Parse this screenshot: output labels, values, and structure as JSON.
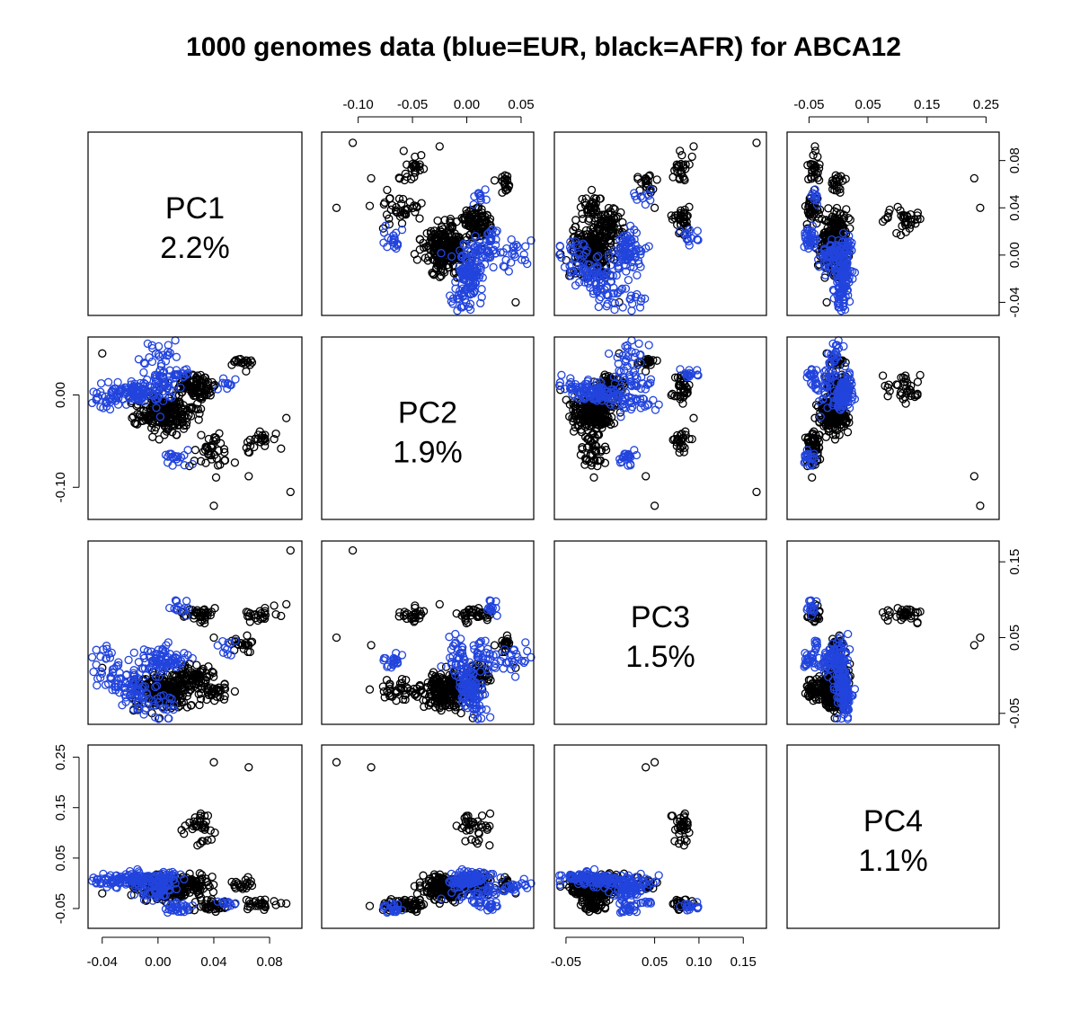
{
  "chart_data": {
    "type": "scatter",
    "title": "1000 genomes data (blue=EUR, black=AFR) for ABCA12",
    "colors": {
      "EUR": "#2244dd",
      "AFR": "#000000"
    },
    "variables": [
      {
        "name": "PC1",
        "pct": "2.2%",
        "range": [
          -0.045,
          0.098
        ],
        "ticks": [
          -0.04,
          0.0,
          0.04,
          0.08
        ],
        "tick_labels": [
          "-0.04",
          "0.00",
          "0.04",
          "0.08"
        ]
      },
      {
        "name": "PC2",
        "pct": "1.9%",
        "range": [
          -0.127,
          0.055
        ],
        "ticks": [
          -0.1,
          -0.05,
          0.0,
          0.05
        ],
        "tick_labels": [
          "-0.10",
          "-0.05",
          "0.00",
          "0.05"
        ]
      },
      {
        "name": "PC3",
        "pct": "1.5%",
        "range": [
          -0.055,
          0.168
        ],
        "ticks": [
          -0.05,
          0.05,
          0.1,
          0.15
        ],
        "tick_labels": [
          "-0.05",
          "0.05",
          "0.10",
          "0.15"
        ]
      },
      {
        "name": "PC4",
        "pct": "1.1%",
        "range": [
          -0.075,
          0.26
        ],
        "ticks": [
          -0.05,
          0.05,
          0.15,
          0.25
        ],
        "tick_labels": [
          "-0.05",
          "0.05",
          "0.15",
          "0.25"
        ]
      }
    ],
    "axes": {
      "top": [
        {
          "col": 1,
          "ticks": [
            -0.1,
            -0.05,
            0.0,
            0.05
          ],
          "tick_labels": [
            "-0.10",
            "-0.05",
            "0.00",
            "0.05"
          ]
        },
        {
          "col": 3,
          "ticks": [
            -0.05,
            0.05,
            0.15,
            0.25
          ],
          "tick_labels": [
            "-0.05",
            "0.05",
            "0.15",
            "0.25"
          ]
        }
      ],
      "bottom": [
        {
          "col": 0,
          "ticks": [
            -0.04,
            0.0,
            0.04,
            0.08
          ],
          "tick_labels": [
            "-0.04",
            "0.00",
            "0.04",
            "0.08"
          ]
        },
        {
          "col": 2,
          "ticks": [
            -0.05,
            0.05,
            0.1,
            0.15
          ],
          "tick_labels": [
            "-0.05",
            "0.05",
            "0.10",
            "0.15"
          ]
        }
      ],
      "left": [
        {
          "row": 1,
          "ticks": [
            -0.1,
            0.0
          ],
          "tick_labels": [
            "-0.10",
            "0.00"
          ]
        },
        {
          "row": 3,
          "ticks": [
            -0.05,
            0.05,
            0.15,
            0.25
          ],
          "tick_labels": [
            "-0.05",
            "0.05",
            "0.15",
            "0.25"
          ]
        }
      ],
      "right": [
        {
          "row": 0,
          "ticks": [
            -0.04,
            0.0,
            0.04,
            0.08
          ],
          "tick_labels": [
            "-0.04",
            "0.00",
            "0.04",
            "0.08"
          ]
        },
        {
          "row": 2,
          "ticks": [
            -0.05,
            0.05,
            0.15
          ],
          "tick_labels": [
            "-0.05",
            "0.05",
            "0.15"
          ]
        }
      ]
    },
    "clusters": [
      {
        "group": "EUR",
        "count": 150,
        "center": [
          -0.02,
          0.002,
          -0.015,
          0.008
        ],
        "spread": [
          0.01,
          0.006,
          0.01,
          0.006
        ],
        "axis": [
          0.016,
          0.006,
          -0.03,
          0.004
        ]
      },
      {
        "group": "EUR",
        "count": 60,
        "center": [
          0.0,
          0.03,
          0.02,
          -0.012
        ],
        "spread": [
          0.006,
          0.012,
          0.01,
          0.006
        ],
        "axis": [
          0.002,
          0.02,
          0.004,
          0.01
        ]
      },
      {
        "group": "EUR",
        "count": 20,
        "center": [
          0.012,
          -0.068,
          0.02,
          -0.052
        ],
        "spread": [
          0.004,
          0.004,
          0.006,
          0.004
        ],
        "axis": [
          0.0,
          0.0,
          0.0,
          0.0
        ]
      },
      {
        "group": "EUR",
        "count": 15,
        "center": [
          0.016,
          0.022,
          0.09,
          -0.045
        ],
        "spread": [
          0.004,
          0.004,
          0.004,
          0.004
        ],
        "axis": [
          0.0,
          0.0,
          0.0,
          0.0
        ]
      },
      {
        "group": "EUR",
        "count": 10,
        "center": [
          0.05,
          0.012,
          0.035,
          -0.04
        ],
        "spread": [
          0.004,
          0.004,
          0.006,
          0.004
        ],
        "axis": [
          0.0,
          0.0,
          0.0,
          0.0
        ]
      },
      {
        "group": "AFR",
        "count": 220,
        "center": [
          0.005,
          -0.02,
          -0.02,
          -0.01
        ],
        "spread": [
          0.01,
          0.01,
          0.012,
          0.01
        ],
        "axis": [
          0.0,
          0.0,
          0.0,
          0.0
        ]
      },
      {
        "group": "AFR",
        "count": 60,
        "center": [
          0.025,
          0.01,
          0.0,
          0.0
        ],
        "spread": [
          0.008,
          0.006,
          0.008,
          0.008
        ],
        "axis": [
          0.0,
          0.0,
          0.0,
          0.0
        ]
      },
      {
        "group": "AFR",
        "count": 40,
        "center": [
          0.04,
          -0.06,
          -0.02,
          -0.045
        ],
        "spread": [
          0.008,
          0.01,
          0.008,
          0.006
        ],
        "axis": [
          0.0,
          0.0,
          0.0,
          0.0
        ]
      },
      {
        "group": "AFR",
        "count": 35,
        "center": [
          0.03,
          0.01,
          0.08,
          0.11
        ],
        "spread": [
          0.006,
          0.008,
          0.006,
          0.015
        ],
        "axis": [
          0.0,
          0.0,
          0.0,
          0.0
        ]
      },
      {
        "group": "AFR",
        "count": 25,
        "center": [
          0.07,
          -0.05,
          0.08,
          -0.04
        ],
        "spread": [
          0.006,
          0.006,
          0.006,
          0.006
        ],
        "axis": [
          0.0,
          0.0,
          0.0,
          0.0
        ]
      },
      {
        "group": "AFR",
        "count": 20,
        "center": [
          0.06,
          0.035,
          0.04,
          -0.005
        ],
        "spread": [
          0.004,
          0.004,
          0.006,
          0.006
        ],
        "axis": [
          0.0,
          0.0,
          0.0,
          0.0
        ]
      }
    ],
    "outliers": [
      [
        0.095,
        -0.105,
        0.165,
        -0.085
      ],
      [
        0.092,
        -0.025,
        0.094,
        -0.04
      ],
      [
        0.065,
        -0.088,
        0.04,
        0.23
      ],
      [
        0.04,
        -0.12,
        0.05,
        0.24
      ],
      [
        -0.04,
        0.045,
        0.01,
        -0.02
      ]
    ]
  }
}
